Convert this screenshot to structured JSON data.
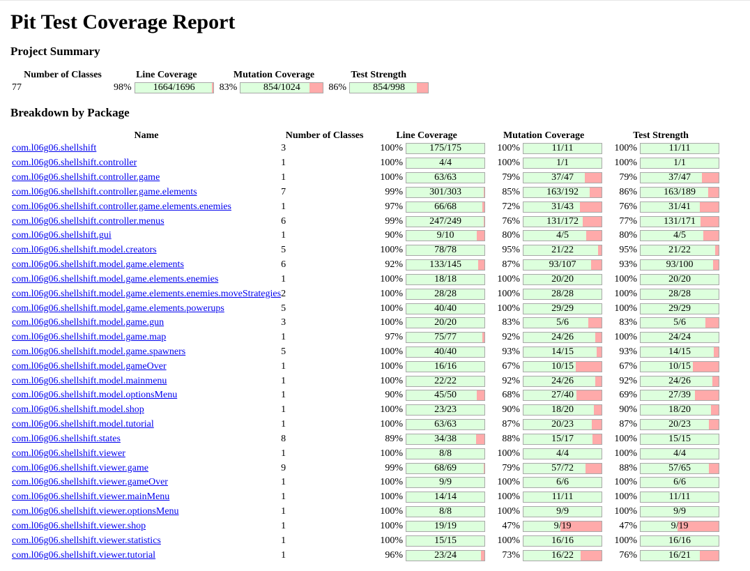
{
  "title": "Pit Test Coverage Report",
  "summary": {
    "heading": "Project Summary",
    "headers": {
      "classes": "Number of Classes",
      "line": "Line Coverage",
      "mutation": "Mutation Coverage",
      "strength": "Test Strength"
    },
    "classes": "77",
    "line": {
      "pct": "98%",
      "label": "1664/1696",
      "fraction": 0.981
    },
    "mutation": {
      "pct": "83%",
      "label": "854/1024",
      "fraction": 0.834
    },
    "strength": {
      "pct": "86%",
      "label": "854/998",
      "fraction": 0.856
    }
  },
  "breakdown": {
    "heading": "Breakdown by Package",
    "headers": {
      "name": "Name",
      "classes": "Number of Classes",
      "line": "Line Coverage",
      "mutation": "Mutation Coverage",
      "strength": "Test Strength"
    },
    "colors": {
      "covered": "#ddffdd",
      "uncovered": "#ffaaaa",
      "link": "#0000ee"
    },
    "rows": [
      {
        "name": "com.l06g06.shellshift",
        "classes": "3",
        "line": {
          "pct": "100%",
          "label": "175/175",
          "fraction": 1
        },
        "mutation": {
          "pct": "100%",
          "label": "11/11",
          "fraction": 1
        },
        "strength": {
          "pct": "100%",
          "label": "11/11",
          "fraction": 1
        }
      },
      {
        "name": "com.l06g06.shellshift.controller",
        "classes": "1",
        "line": {
          "pct": "100%",
          "label": "4/4",
          "fraction": 1
        },
        "mutation": {
          "pct": "100%",
          "label": "1/1",
          "fraction": 1
        },
        "strength": {
          "pct": "100%",
          "label": "1/1",
          "fraction": 1
        }
      },
      {
        "name": "com.l06g06.shellshift.controller.game",
        "classes": "1",
        "line": {
          "pct": "100%",
          "label": "63/63",
          "fraction": 1
        },
        "mutation": {
          "pct": "79%",
          "label": "37/47",
          "fraction": 0.787
        },
        "strength": {
          "pct": "79%",
          "label": "37/47",
          "fraction": 0.787
        }
      },
      {
        "name": "com.l06g06.shellshift.controller.game.elements",
        "classes": "7",
        "line": {
          "pct": "99%",
          "label": "301/303",
          "fraction": 0.993
        },
        "mutation": {
          "pct": "85%",
          "label": "163/192",
          "fraction": 0.849
        },
        "strength": {
          "pct": "86%",
          "label": "163/189",
          "fraction": 0.862
        }
      },
      {
        "name": "com.l06g06.shellshift.controller.game.elements.enemies",
        "classes": "1",
        "line": {
          "pct": "97%",
          "label": "66/68",
          "fraction": 0.971
        },
        "mutation": {
          "pct": "72%",
          "label": "31/43",
          "fraction": 0.721
        },
        "strength": {
          "pct": "76%",
          "label": "31/41",
          "fraction": 0.756
        }
      },
      {
        "name": "com.l06g06.shellshift.controller.menus",
        "classes": "6",
        "line": {
          "pct": "99%",
          "label": "247/249",
          "fraction": 0.992
        },
        "mutation": {
          "pct": "76%",
          "label": "131/172",
          "fraction": 0.762
        },
        "strength": {
          "pct": "77%",
          "label": "131/171",
          "fraction": 0.766
        }
      },
      {
        "name": "com.l06g06.shellshift.gui",
        "classes": "1",
        "line": {
          "pct": "90%",
          "label": "9/10",
          "fraction": 0.9
        },
        "mutation": {
          "pct": "80%",
          "label": "4/5",
          "fraction": 0.8
        },
        "strength": {
          "pct": "80%",
          "label": "4/5",
          "fraction": 0.8
        }
      },
      {
        "name": "com.l06g06.shellshift.model.creators",
        "classes": "5",
        "line": {
          "pct": "100%",
          "label": "78/78",
          "fraction": 1
        },
        "mutation": {
          "pct": "95%",
          "label": "21/22",
          "fraction": 0.955
        },
        "strength": {
          "pct": "95%",
          "label": "21/22",
          "fraction": 0.955
        }
      },
      {
        "name": "com.l06g06.shellshift.model.game.elements",
        "classes": "6",
        "line": {
          "pct": "92%",
          "label": "133/145",
          "fraction": 0.917
        },
        "mutation": {
          "pct": "87%",
          "label": "93/107",
          "fraction": 0.869
        },
        "strength": {
          "pct": "93%",
          "label": "93/100",
          "fraction": 0.93
        }
      },
      {
        "name": "com.l06g06.shellshift.model.game.elements.enemies",
        "classes": "1",
        "line": {
          "pct": "100%",
          "label": "18/18",
          "fraction": 1
        },
        "mutation": {
          "pct": "100%",
          "label": "20/20",
          "fraction": 1
        },
        "strength": {
          "pct": "100%",
          "label": "20/20",
          "fraction": 1
        }
      },
      {
        "name": "com.l06g06.shellshift.model.game.elements.enemies.moveStrategies",
        "classes": "2",
        "line": {
          "pct": "100%",
          "label": "28/28",
          "fraction": 1
        },
        "mutation": {
          "pct": "100%",
          "label": "28/28",
          "fraction": 1
        },
        "strength": {
          "pct": "100%",
          "label": "28/28",
          "fraction": 1
        }
      },
      {
        "name": "com.l06g06.shellshift.model.game.elements.powerups",
        "classes": "5",
        "line": {
          "pct": "100%",
          "label": "40/40",
          "fraction": 1
        },
        "mutation": {
          "pct": "100%",
          "label": "29/29",
          "fraction": 1
        },
        "strength": {
          "pct": "100%",
          "label": "29/29",
          "fraction": 1
        }
      },
      {
        "name": "com.l06g06.shellshift.model.game.gun",
        "classes": "3",
        "line": {
          "pct": "100%",
          "label": "20/20",
          "fraction": 1
        },
        "mutation": {
          "pct": "83%",
          "label": "5/6",
          "fraction": 0.833
        },
        "strength": {
          "pct": "83%",
          "label": "5/6",
          "fraction": 0.833
        }
      },
      {
        "name": "com.l06g06.shellshift.model.game.map",
        "classes": "1",
        "line": {
          "pct": "97%",
          "label": "75/77",
          "fraction": 0.974
        },
        "mutation": {
          "pct": "92%",
          "label": "24/26",
          "fraction": 0.923
        },
        "strength": {
          "pct": "100%",
          "label": "24/24",
          "fraction": 1
        }
      },
      {
        "name": "com.l06g06.shellshift.model.game.spawners",
        "classes": "5",
        "line": {
          "pct": "100%",
          "label": "40/40",
          "fraction": 1
        },
        "mutation": {
          "pct": "93%",
          "label": "14/15",
          "fraction": 0.933
        },
        "strength": {
          "pct": "93%",
          "label": "14/15",
          "fraction": 0.933
        }
      },
      {
        "name": "com.l06g06.shellshift.model.gameOver",
        "classes": "1",
        "line": {
          "pct": "100%",
          "label": "16/16",
          "fraction": 1
        },
        "mutation": {
          "pct": "67%",
          "label": "10/15",
          "fraction": 0.667
        },
        "strength": {
          "pct": "67%",
          "label": "10/15",
          "fraction": 0.667
        }
      },
      {
        "name": "com.l06g06.shellshift.model.mainmenu",
        "classes": "1",
        "line": {
          "pct": "100%",
          "label": "22/22",
          "fraction": 1
        },
        "mutation": {
          "pct": "92%",
          "label": "24/26",
          "fraction": 0.923
        },
        "strength": {
          "pct": "92%",
          "label": "24/26",
          "fraction": 0.923
        }
      },
      {
        "name": "com.l06g06.shellshift.model.optionsMenu",
        "classes": "1",
        "line": {
          "pct": "90%",
          "label": "45/50",
          "fraction": 0.9
        },
        "mutation": {
          "pct": "68%",
          "label": "27/40",
          "fraction": 0.675
        },
        "strength": {
          "pct": "69%",
          "label": "27/39",
          "fraction": 0.692
        }
      },
      {
        "name": "com.l06g06.shellshift.model.shop",
        "classes": "1",
        "line": {
          "pct": "100%",
          "label": "23/23",
          "fraction": 1
        },
        "mutation": {
          "pct": "90%",
          "label": "18/20",
          "fraction": 0.9
        },
        "strength": {
          "pct": "90%",
          "label": "18/20",
          "fraction": 0.9
        }
      },
      {
        "name": "com.l06g06.shellshift.model.tutorial",
        "classes": "1",
        "line": {
          "pct": "100%",
          "label": "63/63",
          "fraction": 1
        },
        "mutation": {
          "pct": "87%",
          "label": "20/23",
          "fraction": 0.87
        },
        "strength": {
          "pct": "87%",
          "label": "20/23",
          "fraction": 0.87
        }
      },
      {
        "name": "com.l06g06.shellshift.states",
        "classes": "8",
        "line": {
          "pct": "89%",
          "label": "34/38",
          "fraction": 0.895
        },
        "mutation": {
          "pct": "88%",
          "label": "15/17",
          "fraction": 0.882
        },
        "strength": {
          "pct": "100%",
          "label": "15/15",
          "fraction": 1
        }
      },
      {
        "name": "com.l06g06.shellshift.viewer",
        "classes": "1",
        "line": {
          "pct": "100%",
          "label": "8/8",
          "fraction": 1
        },
        "mutation": {
          "pct": "100%",
          "label": "4/4",
          "fraction": 1
        },
        "strength": {
          "pct": "100%",
          "label": "4/4",
          "fraction": 1
        }
      },
      {
        "name": "com.l06g06.shellshift.viewer.game",
        "classes": "9",
        "line": {
          "pct": "99%",
          "label": "68/69",
          "fraction": 0.986
        },
        "mutation": {
          "pct": "79%",
          "label": "57/72",
          "fraction": 0.792
        },
        "strength": {
          "pct": "88%",
          "label": "57/65",
          "fraction": 0.877
        }
      },
      {
        "name": "com.l06g06.shellshift.viewer.gameOver",
        "classes": "1",
        "line": {
          "pct": "100%",
          "label": "9/9",
          "fraction": 1
        },
        "mutation": {
          "pct": "100%",
          "label": "6/6",
          "fraction": 1
        },
        "strength": {
          "pct": "100%",
          "label": "6/6",
          "fraction": 1
        }
      },
      {
        "name": "com.l06g06.shellshift.viewer.mainMenu",
        "classes": "1",
        "line": {
          "pct": "100%",
          "label": "14/14",
          "fraction": 1
        },
        "mutation": {
          "pct": "100%",
          "label": "11/11",
          "fraction": 1
        },
        "strength": {
          "pct": "100%",
          "label": "11/11",
          "fraction": 1
        }
      },
      {
        "name": "com.l06g06.shellshift.viewer.optionsMenu",
        "classes": "1",
        "line": {
          "pct": "100%",
          "label": "8/8",
          "fraction": 1
        },
        "mutation": {
          "pct": "100%",
          "label": "9/9",
          "fraction": 1
        },
        "strength": {
          "pct": "100%",
          "label": "9/9",
          "fraction": 1
        }
      },
      {
        "name": "com.l06g06.shellshift.viewer.shop",
        "classes": "1",
        "line": {
          "pct": "100%",
          "label": "19/19",
          "fraction": 1
        },
        "mutation": {
          "pct": "47%",
          "label": "9/19",
          "fraction": 0.474
        },
        "strength": {
          "pct": "47%",
          "label": "9/19",
          "fraction": 0.474
        }
      },
      {
        "name": "com.l06g06.shellshift.viewer.statistics",
        "classes": "1",
        "line": {
          "pct": "100%",
          "label": "15/15",
          "fraction": 1
        },
        "mutation": {
          "pct": "100%",
          "label": "16/16",
          "fraction": 1
        },
        "strength": {
          "pct": "100%",
          "label": "16/16",
          "fraction": 1
        }
      },
      {
        "name": "com.l06g06.shellshift.viewer.tutorial",
        "classes": "1",
        "line": {
          "pct": "96%",
          "label": "23/24",
          "fraction": 0.958
        },
        "mutation": {
          "pct": "73%",
          "label": "16/22",
          "fraction": 0.727
        },
        "strength": {
          "pct": "76%",
          "label": "16/21",
          "fraction": 0.762
        }
      }
    ]
  }
}
